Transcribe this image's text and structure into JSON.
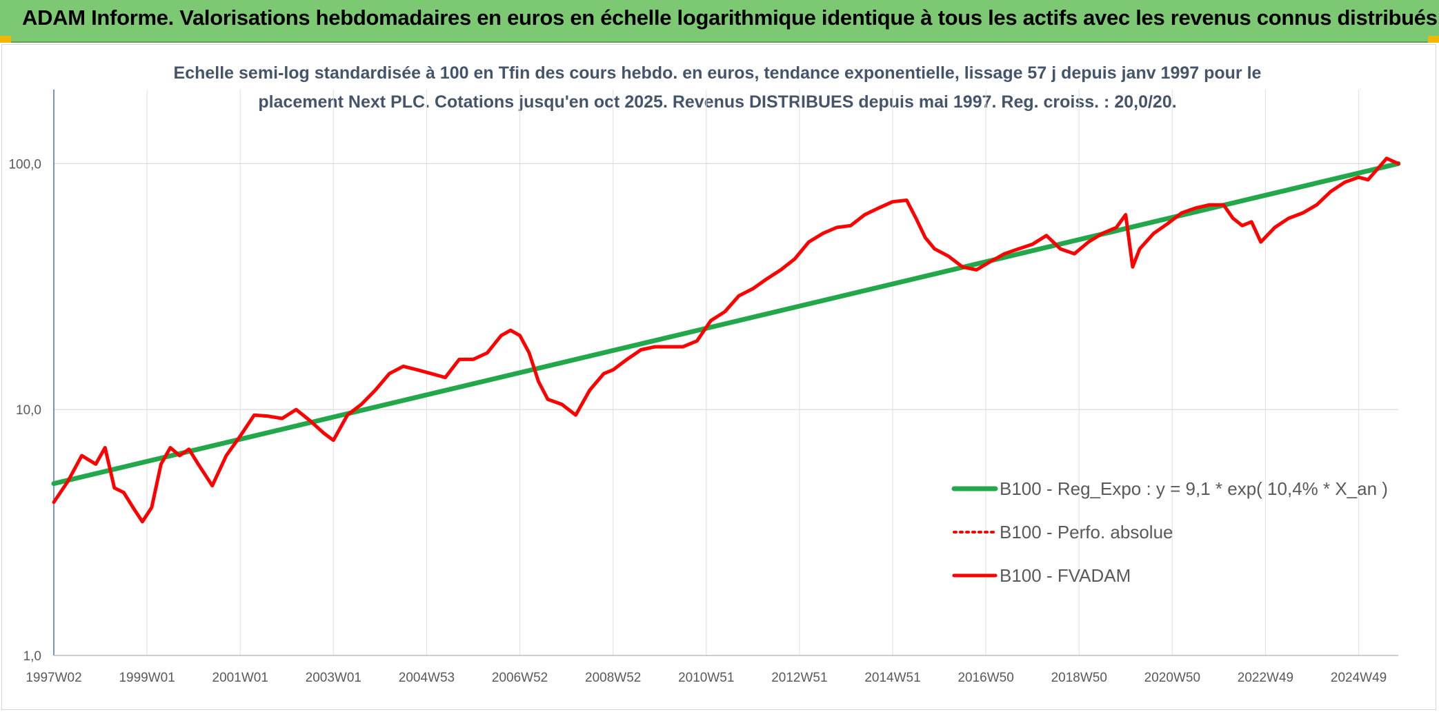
{
  "header": {
    "title": "ADAM Informe. Valorisations hebdomadaires en euros en échelle logarithmique identique à tous les actifs avec les revenus connus distribués"
  },
  "chart_data": {
    "type": "line",
    "title": "",
    "subtitle_lines": [
      "Echelle semi-log standardisée à 100 en Tfin des cours hebdo. en euros, tendance exponentielle, lissage 57 j depuis janv 1997 pour le",
      "placement Next PLC. Cotations jusqu'en oct 2025. Revenus DISTRIBUES depuis mai 1997. Reg. croiss. : 20,0/20."
    ],
    "xlabel": "",
    "ylabel": "",
    "y_scale": "log",
    "ylim": [
      1,
      200
    ],
    "xlim": [
      1997.0,
      2025.85
    ],
    "y_ticks": [
      {
        "value": 1,
        "label": "1,0"
      },
      {
        "value": 10,
        "label": "10,0"
      },
      {
        "value": 100,
        "label": "100,0"
      }
    ],
    "x_ticks": [
      {
        "value": 1997.0,
        "label": "1997W02"
      },
      {
        "value": 1999.0,
        "label": "1999W01"
      },
      {
        "value": 2001.0,
        "label": "2001W01"
      },
      {
        "value": 2003.0,
        "label": "2003W01"
      },
      {
        "value": 2005.0,
        "label": "2004W53"
      },
      {
        "value": 2007.0,
        "label": "2006W52"
      },
      {
        "value": 2009.0,
        "label": "2008W52"
      },
      {
        "value": 2011.0,
        "label": "2010W51"
      },
      {
        "value": 2013.0,
        "label": "2012W51"
      },
      {
        "value": 2015.0,
        "label": "2014W51"
      },
      {
        "value": 2017.0,
        "label": "2016W50"
      },
      {
        "value": 2019.0,
        "label": "2018W50"
      },
      {
        "value": 2021.0,
        "label": "2020W50"
      },
      {
        "value": 2023.0,
        "label": "2022W49"
      },
      {
        "value": 2025.0,
        "label": "2024W49"
      }
    ],
    "grid": true,
    "legend_position": "right",
    "series": [
      {
        "name": "B100 - Reg_Expo : y = 9,1 * exp( 10,4% *  X_an )",
        "color": "#22a84a",
        "style": "solid",
        "x": [
          1997.0,
          2025.85
        ],
        "y": [
          5.0,
          100.0
        ]
      },
      {
        "name": "B100 - Perfo. absolue",
        "color": "#ff0000",
        "style": "dotted",
        "x": [],
        "y": []
      },
      {
        "name": "B100 - FVADAM",
        "color": "#ff0000",
        "style": "solid",
        "x": [
          1997.0,
          1997.3,
          1997.6,
          1997.9,
          1998.1,
          1998.3,
          1998.5,
          1998.7,
          1998.9,
          1999.1,
          1999.3,
          1999.5,
          1999.7,
          1999.9,
          2000.1,
          2000.4,
          2000.7,
          2001.0,
          2001.3,
          2001.6,
          2001.9,
          2002.2,
          2002.5,
          2002.8,
          2003.0,
          2003.3,
          2003.6,
          2003.9,
          2004.2,
          2004.5,
          2004.8,
          2005.1,
          2005.4,
          2005.7,
          2006.0,
          2006.3,
          2006.6,
          2006.8,
          2007.0,
          2007.2,
          2007.4,
          2007.6,
          2007.9,
          2008.2,
          2008.5,
          2008.8,
          2009.0,
          2009.3,
          2009.6,
          2009.9,
          2010.2,
          2010.5,
          2010.8,
          2011.1,
          2011.4,
          2011.7,
          2012.0,
          2012.3,
          2012.6,
          2012.9,
          2013.2,
          2013.5,
          2013.8,
          2014.1,
          2014.4,
          2014.7,
          2015.0,
          2015.3,
          2015.5,
          2015.7,
          2015.9,
          2016.2,
          2016.5,
          2016.8,
          2017.1,
          2017.4,
          2017.7,
          2018.0,
          2018.3,
          2018.6,
          2018.9,
          2019.2,
          2019.5,
          2019.8,
          2020.0,
          2020.15,
          2020.3,
          2020.6,
          2020.9,
          2021.2,
          2021.5,
          2021.8,
          2022.1,
          2022.3,
          2022.5,
          2022.7,
          2022.9,
          2023.2,
          2023.5,
          2023.8,
          2024.1,
          2024.4,
          2024.7,
          2025.0,
          2025.2,
          2025.4,
          2025.6,
          2025.85
        ],
        "y": [
          4.2,
          5.1,
          6.5,
          6.0,
          7.0,
          4.8,
          4.6,
          4.0,
          3.5,
          4.0,
          6.0,
          7.0,
          6.5,
          6.9,
          6.0,
          4.9,
          6.5,
          7.8,
          9.5,
          9.4,
          9.2,
          10.0,
          9.0,
          8.0,
          7.5,
          9.5,
          10.5,
          12.0,
          14.0,
          15.0,
          14.5,
          14.0,
          13.5,
          16.0,
          16.0,
          17.0,
          20.0,
          21.0,
          20.0,
          17.0,
          13.0,
          11.0,
          10.5,
          9.5,
          12.0,
          14.0,
          14.5,
          16.0,
          17.5,
          18.0,
          18.0,
          18.0,
          19.0,
          23.0,
          25.0,
          29.0,
          31.0,
          34.0,
          37.0,
          41.0,
          48.0,
          52.0,
          55.0,
          56.0,
          62.0,
          66.0,
          70.0,
          71.0,
          60.0,
          50.0,
          45.0,
          42.0,
          38.0,
          37.0,
          40.0,
          43.0,
          45.0,
          47.0,
          51.0,
          45.0,
          43.0,
          48.0,
          52.0,
          55.0,
          62.0,
          38.0,
          45.0,
          52.0,
          57.0,
          63.0,
          66.0,
          68.0,
          68.0,
          60.0,
          56.0,
          58.0,
          48.0,
          55.0,
          60.0,
          63.0,
          68.0,
          77.0,
          84.0,
          88.0,
          86.0,
          95.0,
          105.0,
          100.0
        ]
      }
    ]
  }
}
